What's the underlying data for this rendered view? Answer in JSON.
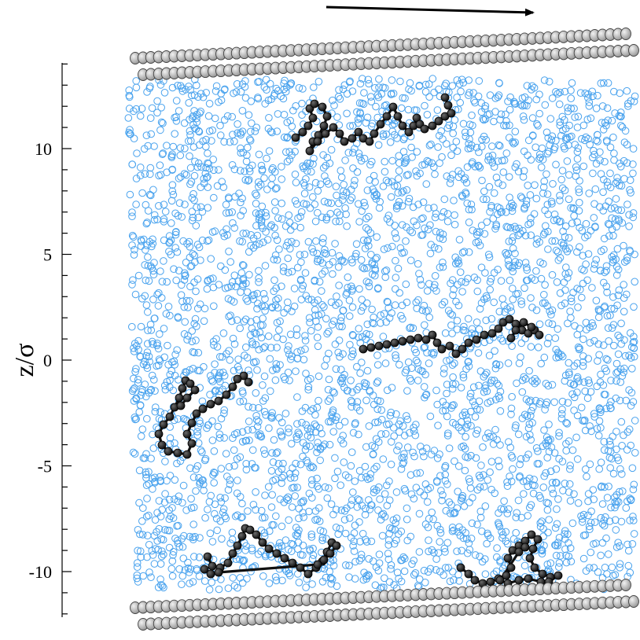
{
  "axis": {
    "label_main": "z",
    "label_sep": "/",
    "label_unit": "σ",
    "ticks": [
      {
        "value": 10,
        "label": "10"
      },
      {
        "value": 5,
        "label": "5"
      },
      {
        "value": 0,
        "label": "0"
      },
      {
        "value": -5,
        "label": "-5"
      },
      {
        "value": -10,
        "label": "-10"
      }
    ],
    "range": [
      -12,
      14
    ]
  },
  "colors": {
    "solvent": "#4aa3ee",
    "chain": "#111111",
    "chain_bead": "#333333",
    "wall_fill": "#c8c8c8",
    "wall_stroke": "#444444",
    "arrow": "#000000"
  },
  "icons": {
    "shear": "arrow-right-icon"
  }
}
